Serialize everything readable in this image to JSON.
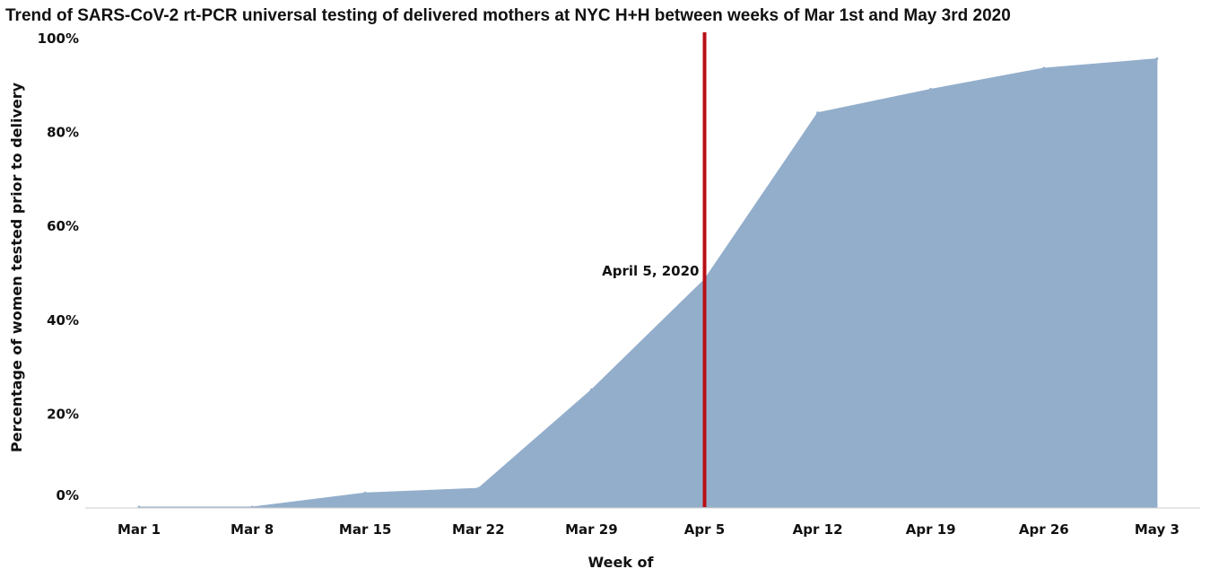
{
  "chart_data": {
    "type": "area",
    "title": "Trend of SARS-CoV-2 rt-PCR universal testing of delivered mothers at NYC H+H between weeks of Mar 1st and May 3rd 2020",
    "xlabel": "Week of",
    "ylabel": "Percentage of women tested prior to delivery",
    "categories": [
      "Mar 1",
      "Mar 8",
      "Mar 15",
      "Mar 22",
      "Mar 29",
      "Apr 5",
      "Apr 12",
      "Apr 19",
      "Apr 26",
      "May 3"
    ],
    "values": [
      0,
      0,
      3,
      4,
      25,
      48.5,
      84,
      89,
      93.5,
      95.5
    ],
    "ylim": [
      0,
      100
    ],
    "y_ticks": [
      "0%",
      "20%",
      "40%",
      "60%",
      "80%",
      "100%"
    ],
    "y_tick_values": [
      0,
      20,
      40,
      60,
      80,
      100
    ],
    "grid": false,
    "annotation": {
      "label": "April 5, 2020",
      "x_category": "Apr 5"
    },
    "colors": {
      "area": "#93aecb",
      "reference_line": "#b80f16",
      "axis": "#cfcfcf",
      "text": "#111111"
    }
  }
}
